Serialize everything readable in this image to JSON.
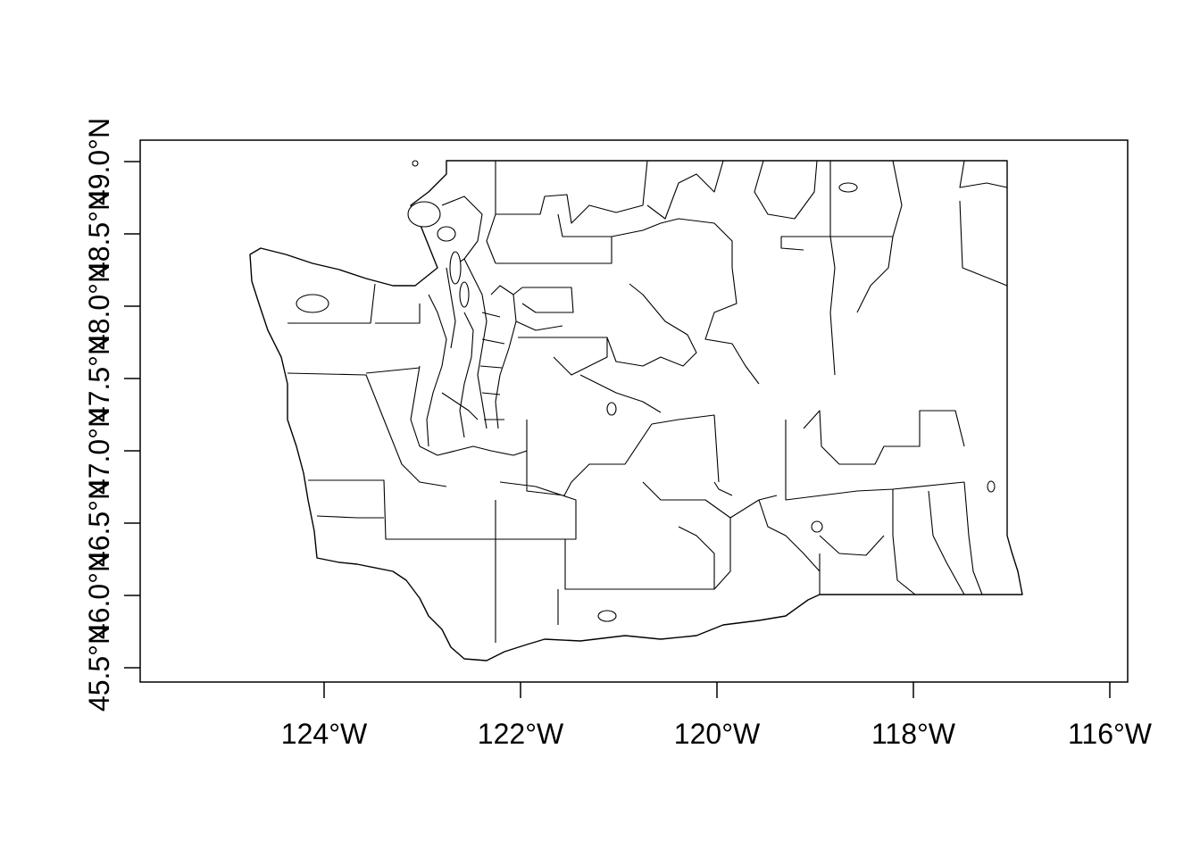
{
  "chart_data": {
    "type": "map",
    "map": "school-district-like boundaries of Washington State",
    "axes": {
      "x": {
        "range": [
          -125.8,
          -115.8
        ],
        "ticks": [
          {
            "value": -124,
            "label": "124°W"
          },
          {
            "value": -122,
            "label": "122°W"
          },
          {
            "value": -120,
            "label": "120°W"
          },
          {
            "value": -118,
            "label": "118°W"
          },
          {
            "value": -116,
            "label": "116°W"
          }
        ]
      },
      "y": {
        "range": [
          45.45,
          49.07
        ],
        "ticks": [
          {
            "value": 45.5,
            "label": "45.5°N"
          },
          {
            "value": 46.0,
            "label": "46.0°N"
          },
          {
            "value": 46.5,
            "label": "46.5°N"
          },
          {
            "value": 47.0,
            "label": "47.0°N"
          },
          {
            "value": 47.5,
            "label": "47.5°N"
          },
          {
            "value": 48.0,
            "label": "48.0°N"
          },
          {
            "value": 48.5,
            "label": "48.5°N"
          },
          {
            "value": 49.0,
            "label": "49.0°N"
          }
        ]
      }
    },
    "grid": false,
    "colors": {
      "stroke": "#000000",
      "background": "#ffffff"
    }
  }
}
